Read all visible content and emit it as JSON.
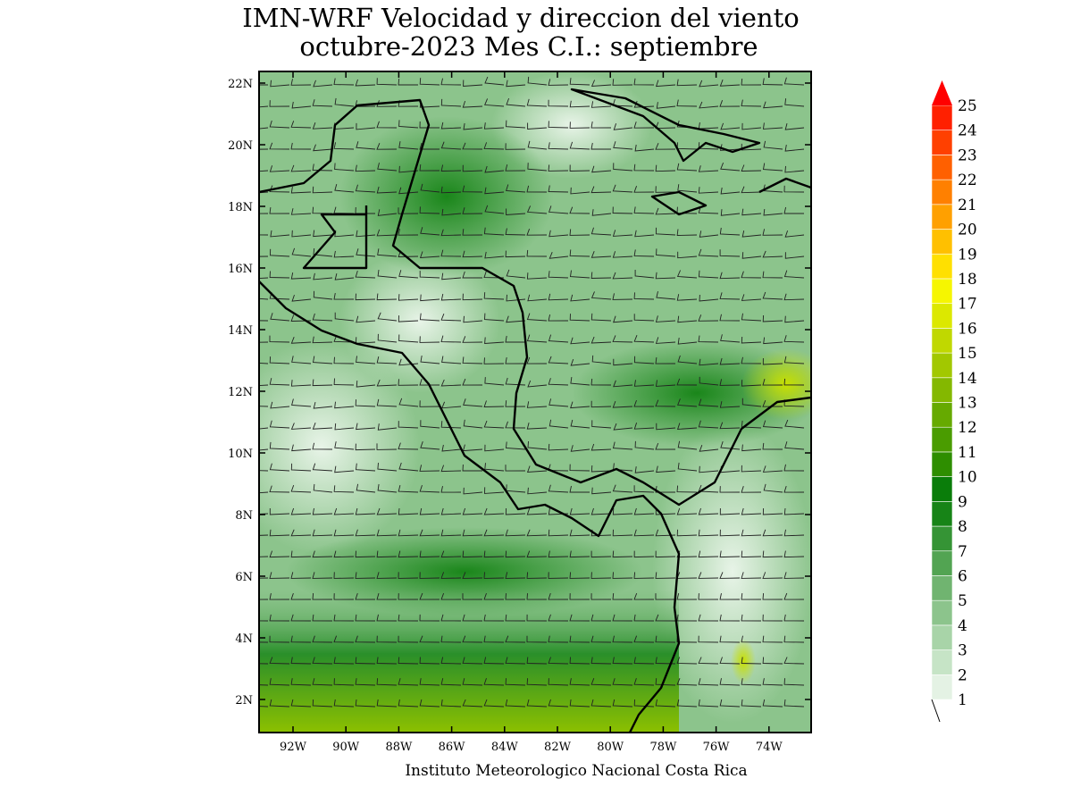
{
  "header": {
    "title": "IMN-WRF Velocidad y direccion del viento",
    "subtitle": "octubre-2023 Mes C.I.: septiembre"
  },
  "map": {
    "lat_labels": [
      "22N",
      "20N",
      "18N",
      "16N",
      "14N",
      "12N",
      "10N",
      "8N",
      "6N",
      "4N",
      "2N"
    ],
    "lon_labels": [
      "92W",
      "90W",
      "88W",
      "86W",
      "84W",
      "82W",
      "80W",
      "78W",
      "76W",
      "74W"
    ]
  },
  "colorbar": {
    "levels": [
      "1",
      "2",
      "3",
      "4",
      "5",
      "6",
      "7",
      "8",
      "9",
      "10",
      "11",
      "12",
      "13",
      "14",
      "15",
      "16",
      "17",
      "18",
      "19",
      "20",
      "21",
      "22",
      "23",
      "24",
      "25"
    ],
    "colors": [
      "#e4f2e4",
      "#c6e4c6",
      "#a8d4a8",
      "#8cc48c",
      "#70b470",
      "#52a452",
      "#359435",
      "#178417",
      "#0a7d0a",
      "#2e8e00",
      "#4a9c00",
      "#66aa00",
      "#84b800",
      "#a2c800",
      "#c0d800",
      "#dce800",
      "#f6f600",
      "#ffe000",
      "#ffc000",
      "#ffa000",
      "#ff8000",
      "#ff6000",
      "#ff4000",
      "#ff2000",
      "#ff0000"
    ]
  },
  "footer": {
    "credit": "Instituto Meteorologico Nacional Costa Rica"
  }
}
